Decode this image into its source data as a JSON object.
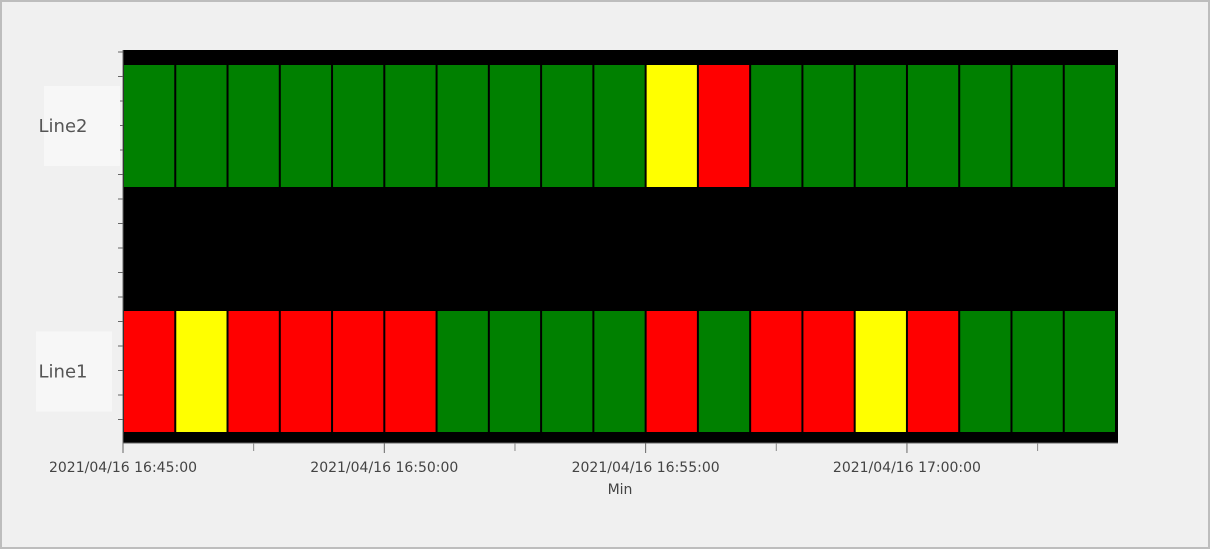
{
  "chart_data": {
    "type": "status-timeline",
    "x_label": "Min",
    "xlim": [
      "2021/04/16 16:45:00",
      "2021/04/16 17:04:00"
    ],
    "xticks": [
      "2021/04/16 16:45:00",
      "2021/04/16 16:50:00",
      "2021/04/16 16:55:00",
      "2021/04/16 17:00:00"
    ],
    "xminorticks": [
      "2021/04/16 16:47:30",
      "2021/04/16 16:52:30",
      "2021/04/16 16:57:30",
      "2021/04/16 17:02:30"
    ],
    "x": [
      "2021/04/16 16:45:00",
      "2021/04/16 16:46:00",
      "2021/04/16 16:47:00",
      "2021/04/16 16:48:00",
      "2021/04/16 16:49:00",
      "2021/04/16 16:50:00",
      "2021/04/16 16:51:00",
      "2021/04/16 16:52:00",
      "2021/04/16 16:53:00",
      "2021/04/16 16:54:00",
      "2021/04/16 16:55:00",
      "2021/04/16 16:56:00",
      "2021/04/16 16:57:00",
      "2021/04/16 16:58:00",
      "2021/04/16 16:59:00",
      "2021/04/16 17:00:00",
      "2021/04/16 17:01:00",
      "2021/04/16 17:02:00",
      "2021/04/16 17:03:00"
    ],
    "series": [
      {
        "name": "Line1",
        "colors": [
          "#ff0000",
          "#ffff00",
          "#ff0000",
          "#ff0000",
          "#ff0000",
          "#ff0000",
          "#008000",
          "#008000",
          "#008000",
          "#008000",
          "#ff0000",
          "#008000",
          "#ff0000",
          "#ff0000",
          "#ffff00",
          "#ff0000",
          "#008000",
          "#008000",
          "#008000"
        ]
      },
      {
        "name": "Line2",
        "colors": [
          "#008000",
          "#008000",
          "#008000",
          "#008000",
          "#008000",
          "#008000",
          "#008000",
          "#008000",
          "#008000",
          "#008000",
          "#ffff00",
          "#ff0000",
          "#008000",
          "#008000",
          "#008000",
          "#008000",
          "#008000",
          "#008000",
          "#008000"
        ]
      }
    ],
    "background": "#000000"
  }
}
